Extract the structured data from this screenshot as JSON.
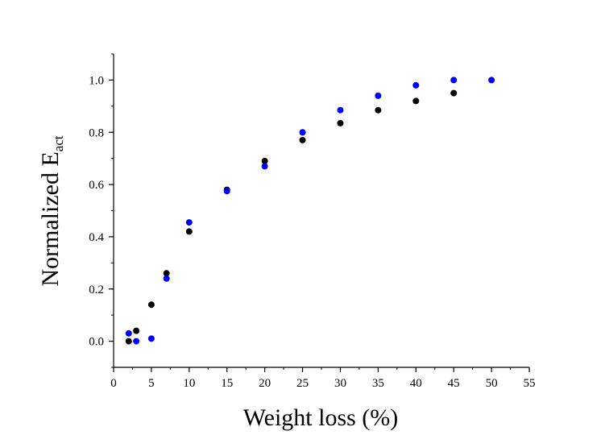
{
  "chart_data": {
    "type": "scatter",
    "title": "",
    "xlabel": "Weight loss (%)",
    "ylabel": "Normalized E",
    "ylabel_subscript": "act",
    "xlim": [
      0,
      55
    ],
    "ylim": [
      -0.1,
      1.1
    ],
    "xticks": [
      0,
      5,
      10,
      15,
      20,
      25,
      30,
      35,
      40,
      45,
      50,
      55
    ],
    "yticks": [
      0.0,
      0.2,
      0.4,
      0.6,
      0.8,
      1.0
    ],
    "ytick_labels": [
      "0.0",
      "0.2",
      "0.4",
      "0.6",
      "0.8",
      "1.0"
    ],
    "grid": false,
    "legend": null,
    "series": [
      {
        "color": "#000000",
        "x": [
          2,
          3,
          5,
          7,
          10,
          15,
          20,
          25,
          30,
          35,
          40,
          45
        ],
        "y": [
          0.0,
          0.04,
          0.14,
          0.26,
          0.42,
          0.58,
          0.69,
          0.77,
          0.835,
          0.885,
          0.92,
          0.95
        ]
      },
      {
        "color": "#0000ff",
        "x": [
          2,
          3,
          5,
          7,
          10,
          15,
          20,
          25,
          30,
          35,
          40,
          45,
          50
        ],
        "y": [
          0.03,
          0.0,
          0.01,
          0.24,
          0.455,
          0.575,
          0.67,
          0.8,
          0.885,
          0.94,
          0.98,
          1.0,
          1.0
        ]
      }
    ]
  }
}
